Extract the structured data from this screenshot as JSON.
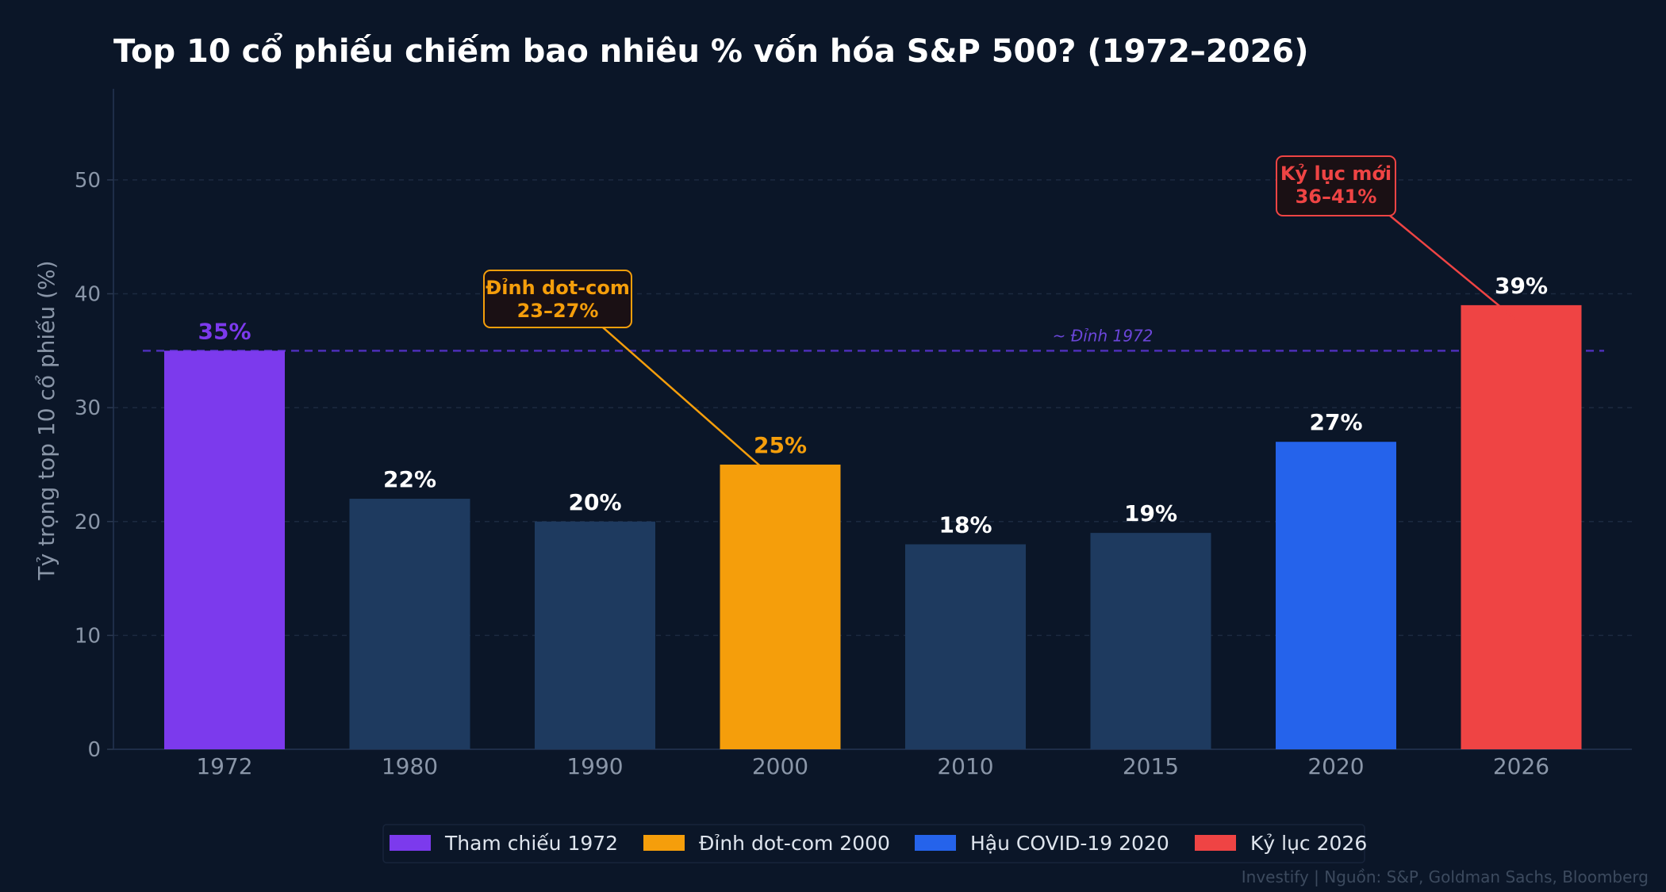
{
  "chart_data": {
    "type": "bar",
    "title": "Top 10 cổ phiếu chiếm bao nhiêu % vốn hóa S&P 500? (1972–2026)",
    "ylabel": "Tỷ trọng top 10 cổ phiếu (%)",
    "xlabel": "",
    "ylim": [
      0,
      58
    ],
    "yticks": [
      0,
      10,
      20,
      30,
      40,
      50
    ],
    "grid": true,
    "categories": [
      "1972",
      "1980",
      "1990",
      "2000",
      "2010",
      "2015",
      "2020",
      "2026"
    ],
    "values": [
      35,
      22,
      20,
      25,
      18,
      19,
      27,
      39
    ],
    "value_labels": [
      "35%",
      "22%",
      "20%",
      "25%",
      "18%",
      "19%",
      "27%",
      "39%"
    ],
    "bar_colors": [
      "#7c3aed",
      "#1e3a5f",
      "#1e3a5f",
      "#f59e0b",
      "#1e3a5f",
      "#1e3a5f",
      "#2563eb",
      "#ef4444"
    ],
    "value_label_colors": [
      "#7c3aed",
      "#ffffff",
      "#ffffff",
      "#f59e0b",
      "#ffffff",
      "#ffffff",
      "#ffffff",
      "#ffffff"
    ],
    "reference_line": {
      "value": 35,
      "label": "~ Đỉnh 1972",
      "color": "#4c2fb8"
    },
    "annotations": [
      {
        "lines": [
          "Đỉnh dot-com",
          "23–27%"
        ],
        "target_category": "2000",
        "target_value": 25,
        "color": "#f59e0b"
      },
      {
        "lines": [
          "Kỷ lục mới",
          "36–41%"
        ],
        "target_category": "2026",
        "target_value": 39,
        "color": "#ef4444"
      }
    ],
    "legend": {
      "position": "bottom-center",
      "items": [
        {
          "label": "Tham chiếu 1972",
          "color": "#7c3aed"
        },
        {
          "label": "Đỉnh dot-com 2000",
          "color": "#f59e0b"
        },
        {
          "label": "Hậu COVID-19 2020",
          "color": "#2563eb"
        },
        {
          "label": "Kỷ lục 2026",
          "color": "#ef4444"
        }
      ]
    },
    "source": "Investify  |  Nguồn: S&P, Goldman Sachs, Bloomberg"
  }
}
